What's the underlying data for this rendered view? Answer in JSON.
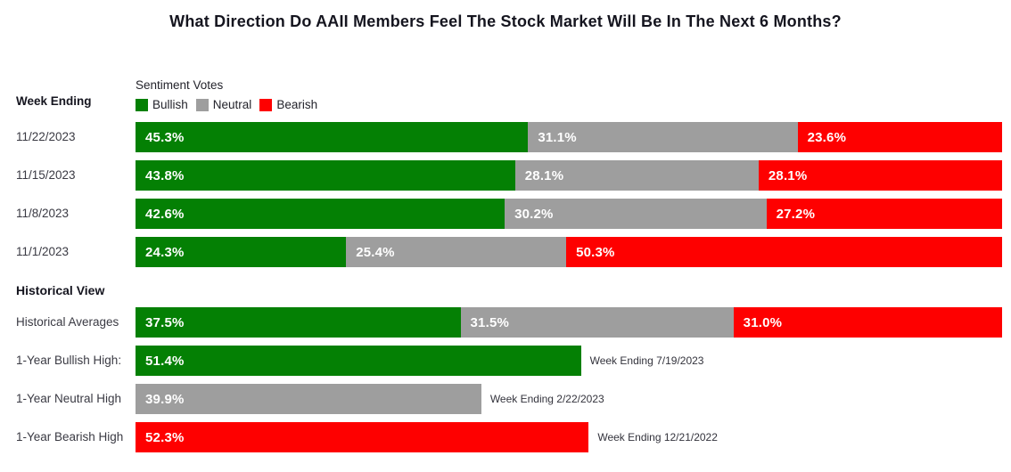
{
  "header": {
    "title": "What Direction Do AAII Members Feel The Stock Market Will Be In The Next 6 Months?"
  },
  "labels": {
    "week_ending": "Week Ending",
    "historical_view": "Historical View"
  },
  "colors": {
    "bullish": "#048004",
    "neutral": "#9e9e9e",
    "bearish": "#fe0000"
  },
  "legend": {
    "title": "Sentiment Votes",
    "items": [
      {
        "label": "Bullish",
        "color": "#048004"
      },
      {
        "label": "Neutral",
        "color": "#9e9e9e"
      },
      {
        "label": "Bearish",
        "color": "#fe0000"
      }
    ]
  },
  "weekly_rows": [
    {
      "date": "11/22/2023",
      "segments": [
        {
          "name": "Bullish",
          "pct": 45.3,
          "text": "45.3%"
        },
        {
          "name": "Neutral",
          "pct": 31.1,
          "text": "31.1%"
        },
        {
          "name": "Bearish",
          "pct": 23.6,
          "text": "23.6%"
        }
      ]
    },
    {
      "date": "11/15/2023",
      "segments": [
        {
          "name": "Bullish",
          "pct": 43.8,
          "text": "43.8%"
        },
        {
          "name": "Neutral",
          "pct": 28.1,
          "text": "28.1%"
        },
        {
          "name": "Bearish",
          "pct": 28.1,
          "text": "28.1%"
        }
      ]
    },
    {
      "date": "11/8/2023",
      "segments": [
        {
          "name": "Bullish",
          "pct": 42.6,
          "text": "42.6%"
        },
        {
          "name": "Neutral",
          "pct": 30.2,
          "text": "30.2%"
        },
        {
          "name": "Bearish",
          "pct": 27.2,
          "text": "27.2%"
        }
      ]
    },
    {
      "date": "11/1/2023",
      "segments": [
        {
          "name": "Bullish",
          "pct": 24.3,
          "text": "24.3%"
        },
        {
          "name": "Neutral",
          "pct": 25.4,
          "text": "25.4%"
        },
        {
          "name": "Bearish",
          "pct": 50.3,
          "text": "50.3%"
        }
      ]
    }
  ],
  "historical": {
    "average": {
      "label": "Historical Averages",
      "segments": [
        {
          "name": "Bullish",
          "pct": 37.5,
          "text": "37.5%"
        },
        {
          "name": "Neutral",
          "pct": 31.5,
          "text": "31.5%"
        },
        {
          "name": "Bearish",
          "pct": 31.0,
          "text": "31.0%"
        }
      ]
    },
    "highs": [
      {
        "label": "1-Year Bullish High:",
        "series": "Bullish",
        "color": "#048004",
        "pct": 51.4,
        "text": "51.4%",
        "annotation": "Week Ending 7/19/2023"
      },
      {
        "label": "1-Year Neutral High",
        "series": "Neutral",
        "color": "#9e9e9e",
        "pct": 39.9,
        "text": "39.9%",
        "annotation": "Week Ending 2/22/2023"
      },
      {
        "label": "1-Year Bearish High",
        "series": "Bearish",
        "color": "#fe0000",
        "pct": 52.3,
        "text": "52.3%",
        "annotation": "Week Ending 12/21/2022"
      }
    ]
  },
  "chart_data": {
    "type": "bar",
    "subtype": "horizontal-stacked-100pct",
    "title": "What Direction Do AAII Members Feel The Stock Market Will Be In The Next 6 Months?",
    "unit": "%",
    "xlim": [
      0,
      100
    ],
    "grid": false,
    "legend_position": "top-left-above-bars",
    "legend_title": "Sentiment Votes",
    "categories": [
      "11/22/2023",
      "11/15/2023",
      "11/8/2023",
      "11/1/2023",
      "Historical Averages"
    ],
    "series": [
      {
        "name": "Bullish",
        "color": "#048004",
        "values": [
          45.3,
          43.8,
          42.6,
          24.3,
          37.5
        ]
      },
      {
        "name": "Neutral",
        "color": "#9e9e9e",
        "values": [
          31.1,
          28.1,
          30.2,
          25.4,
          31.5
        ]
      },
      {
        "name": "Bearish",
        "color": "#fe0000",
        "values": [
          23.6,
          28.1,
          27.2,
          50.3,
          31.0
        ]
      }
    ],
    "single_bars": [
      {
        "label": "1-Year Bullish High:",
        "series": "Bullish",
        "value": 51.4,
        "annotation": "Week Ending 7/19/2023"
      },
      {
        "label": "1-Year Neutral High",
        "series": "Neutral",
        "value": 39.9,
        "annotation": "Week Ending 2/22/2023"
      },
      {
        "label": "1-Year Bearish High",
        "series": "Bearish",
        "value": 52.3,
        "annotation": "Week Ending 12/21/2022"
      }
    ]
  }
}
